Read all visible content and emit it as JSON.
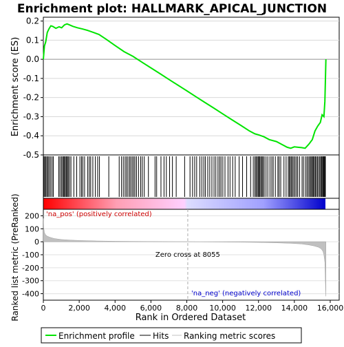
{
  "chart_data": [
    {
      "panel": "enrichment-profile",
      "type": "line",
      "title": "Enrichment plot: HALLMARK_APICAL_JUNCTION",
      "ylabel": "Enrichment score (ES)",
      "xlim": [
        0,
        16500
      ],
      "ylim": [
        -0.5,
        0.22
      ],
      "yticks": [
        0.2,
        0.1,
        0.0,
        -0.1,
        -0.2,
        -0.3,
        -0.4,
        -0.5
      ],
      "ytick_labels": [
        "0.2",
        "0.1",
        "0.0",
        "-0.1",
        "-0.2",
        "-0.3",
        "-0.4",
        "-0.5"
      ],
      "series": [
        {
          "name": "Enrichment profile",
          "color": "#00e400",
          "x": [
            0,
            60,
            130,
            220,
            320,
            420,
            520,
            700,
            880,
            1020,
            1180,
            1320,
            1450,
            1650,
            1900,
            2200,
            2500,
            2800,
            3100,
            3500,
            4000,
            4500,
            5000,
            5500,
            6000,
            6500,
            7000,
            7500,
            8000,
            8500,
            9000,
            9500,
            10000,
            10500,
            11000,
            11500,
            11800,
            12000,
            12300,
            12600,
            13000,
            13300,
            13600,
            13800,
            14000,
            14200,
            14400,
            14600,
            14800,
            15000,
            15150,
            15300,
            15450,
            15550,
            15650,
            15700,
            15730,
            15760
          ],
          "y": [
            0.0,
            0.07,
            0.09,
            0.14,
            0.16,
            0.175,
            0.172,
            0.162,
            0.17,
            0.165,
            0.18,
            0.185,
            0.18,
            0.172,
            0.165,
            0.158,
            0.15,
            0.14,
            0.13,
            0.105,
            0.072,
            0.04,
            0.015,
            -0.015,
            -0.045,
            -0.075,
            -0.105,
            -0.135,
            -0.165,
            -0.195,
            -0.225,
            -0.255,
            -0.285,
            -0.315,
            -0.345,
            -0.375,
            -0.39,
            -0.395,
            -0.405,
            -0.42,
            -0.43,
            -0.445,
            -0.46,
            -0.465,
            -0.458,
            -0.46,
            -0.462,
            -0.465,
            -0.445,
            -0.42,
            -0.375,
            -0.35,
            -0.33,
            -0.29,
            -0.3,
            -0.22,
            -0.12,
            0.0
          ]
        }
      ]
    },
    {
      "panel": "hits",
      "type": "scatter",
      "legend_name": "Hits",
      "xlim": [
        0,
        16500
      ],
      "hit_positions": [
        40,
        95,
        150,
        210,
        270,
        330,
        410,
        490,
        560,
        860,
        930,
        1010,
        1070,
        1130,
        1180,
        1230,
        1290,
        1340,
        1390,
        1460,
        1540,
        1700,
        1860,
        2040,
        2130,
        2200,
        2300,
        2470,
        2560,
        2640,
        2760,
        2900,
        3030,
        3130,
        3650,
        4230,
        4360,
        4460,
        4560,
        4640,
        4720,
        4810,
        4880,
        4960,
        5040,
        5110,
        5200,
        5310,
        5430,
        5520,
        5630,
        5860,
        6230,
        6320,
        6560,
        6730,
        6860,
        7040,
        7200,
        7410,
        7880,
        8180,
        8320,
        8440,
        8550,
        8730,
        8840,
        8950,
        9040,
        9170,
        9280,
        9400,
        9520,
        9620,
        9740,
        9830,
        9910,
        10010,
        10130,
        10300,
        10410,
        10560,
        10700,
        10920,
        11110,
        11340,
        11560,
        11710,
        11800,
        11860,
        11920,
        11980,
        12030,
        12080,
        12140,
        12200,
        12250,
        12320,
        12420,
        12520,
        12640,
        12740,
        12820,
        12940,
        13080,
        13150,
        13240,
        13420,
        13540,
        13660,
        13720,
        13780,
        13840,
        13900,
        13970,
        14040,
        14120,
        14190,
        14290,
        14430,
        14510,
        14620,
        14700,
        14770,
        14840,
        14900,
        14960,
        15010,
        15060,
        15120,
        15170,
        15230,
        15290,
        15360,
        15420,
        15480,
        15530,
        15580,
        15620,
        15660,
        15700,
        15730
      ]
    },
    {
      "panel": "ranked-metric",
      "type": "area",
      "ylabel": "Ranked list metric (PreRanked)",
      "xlabel": "Rank in Ordered Dataset",
      "legend_name": "Ranking metric scores",
      "xlim": [
        0,
        16500
      ],
      "ylim": [
        -450,
        250
      ],
      "xticks": [
        0,
        2000,
        4000,
        6000,
        8000,
        10000,
        12000,
        14000,
        16000
      ],
      "xtick_labels": [
        "0",
        "2,000",
        "4,000",
        "6,000",
        "8,000",
        "10,000",
        "12,000",
        "14,000",
        "16,000"
      ],
      "yticks": [
        200,
        100,
        0,
        -100,
        -200,
        -300,
        -400
      ],
      "ytick_labels": [
        "200",
        "100",
        "0",
        "-100",
        "-200",
        "-300",
        "-400"
      ],
      "zero_cross": 8055,
      "zero_cross_label": "Zero cross at 8055",
      "pos_label": "'na_pos' (positively correlated)",
      "neg_label": "'na_neg' (negatively correlated)",
      "x": [
        0,
        20,
        60,
        120,
        200,
        350,
        600,
        1000,
        1500,
        2000,
        3000,
        4000,
        5000,
        6000,
        7000,
        8055,
        9000,
        10000,
        11000,
        12000,
        13000,
        13800,
        14400,
        14800,
        15100,
        15350,
        15500,
        15600,
        15650,
        15700,
        15730,
        15760
      ],
      "y": [
        180,
        110,
        70,
        55,
        45,
        35,
        25,
        17,
        13,
        10,
        6,
        4,
        3,
        2,
        1,
        0,
        -1,
        -2,
        -3,
        -5,
        -8,
        -12,
        -17,
        -24,
        -32,
        -42,
        -55,
        -75,
        -100,
        -160,
        -300,
        -420
      ]
    }
  ],
  "legend": [
    {
      "label": "Enrichment profile",
      "color": "#00e400"
    },
    {
      "label": "Hits",
      "color": "#000000"
    },
    {
      "label": "Ranking metric scores",
      "color": "#c0c0c0"
    }
  ]
}
